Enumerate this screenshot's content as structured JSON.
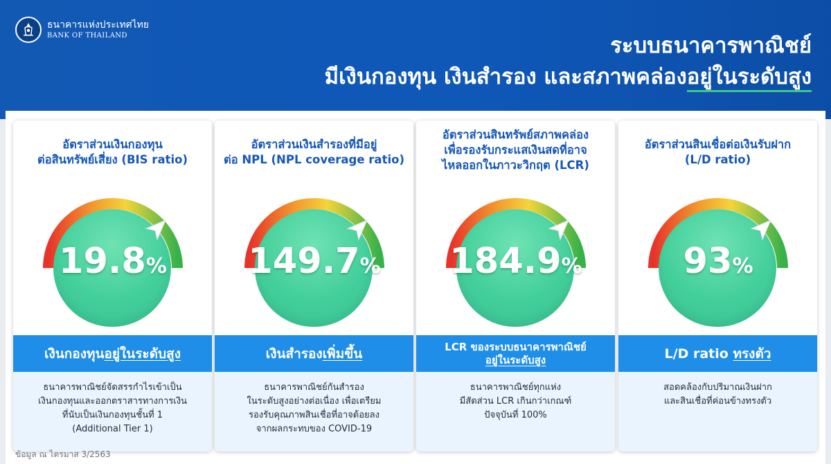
{
  "logo": {
    "thai": "ธนาคารแห่งประเทศไทย",
    "english": "BANK OF THAILAND"
  },
  "title": {
    "line1": "ระบบธนาคารพาณิชย์",
    "line2_prefix": "มีเงินกองทุน เงินสำรอง และสภาพคล่อง",
    "line2_emphasis": "อยู่ในระดับสูง"
  },
  "cards": [
    {
      "title_lines": [
        "อัตราส่วนเงินกองทุน",
        "ต่อสินทรัพย์เสี่ยง (BIS ratio)"
      ],
      "value": "19.8",
      "unit": "%",
      "banner_prefix": "เงินกองทุน",
      "banner_emphasis": "อยู่ในระดับสูง",
      "desc_lines": [
        "ธนาคารพาณิชย์จัดสรรกำไรเข้าเป็น",
        "เงินกองทุนและออกตราสารทางการเงิน",
        "ที่นับเป็นเงินกองทุนชั้นที่ 1",
        "(Additional Tier 1)"
      ]
    },
    {
      "title_lines": [
        "อัตราส่วนเงินสำรองที่มีอยู่",
        "ต่อ NPL (NPL coverage ratio)"
      ],
      "value": "149.7",
      "unit": "%",
      "banner_prefix": "เงินสำรอง",
      "banner_emphasis": "เพิ่มขึ้น",
      "desc_lines": [
        "ธนาคารพาณิชย์กันสำรอง",
        "ในระดับสูงอย่างต่อเนื่อง เพื่อเตรียม",
        "รองรับคุณภาพสินเชื่อที่อาจด้อยลง",
        "จากผลกระทบของ COVID-19"
      ]
    },
    {
      "title_lines": [
        "อัตราส่วนสินทรัพย์สภาพคล่อง",
        "เพื่อรองรับกระแสเงินสดที่อาจ",
        "ไหลออกในภาวะวิกฤต (LCR)"
      ],
      "value": "184.9",
      "unit": "%",
      "banner_line1": "LCR ของระบบธนาคารพาณิชย์",
      "banner_emphasis": "อยู่ในระดับสูง",
      "desc_lines": [
        "ธนาคารพาณิชย์ทุกแห่ง",
        "มีสัดส่วน LCR เกินกว่าเกณฑ์",
        "ปัจจุบันที่ 100%"
      ]
    },
    {
      "title_lines": [
        "อัตราส่วนสินเชื่อต่อเงินรับฝาก",
        "(L/D ratio)"
      ],
      "value": "93",
      "unit": "%",
      "banner_prefix": "L/D ratio ",
      "banner_emphasis": "ทรงตัว",
      "desc_lines": [
        "สอดคล้องกับปริมาณเงินฝาก",
        "และสินเชื่อที่ค่อนข้างทรงตัว"
      ]
    }
  ],
  "footnote": "ข้อมูล ณ ไตรมาส 3/2563",
  "colors": {
    "header_blue": "#1259b4",
    "title_blue": "#1558b8",
    "banner_blue": "#1f8ee8",
    "gauge_green": "#43cf9b",
    "underline_green": "#3ccb84"
  }
}
